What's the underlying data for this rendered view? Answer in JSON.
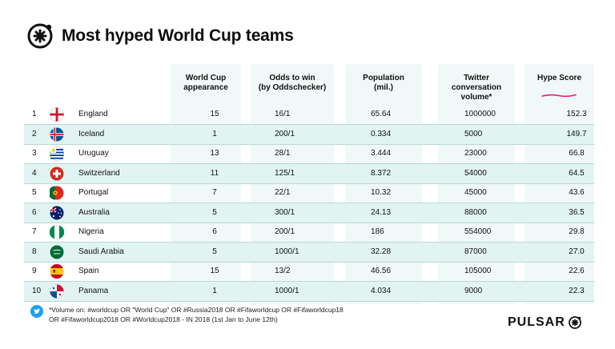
{
  "title": "Most hyped World Cup teams",
  "headers": {
    "world_cup": [
      "World Cup",
      "appearance"
    ],
    "odds": [
      "Odds to win",
      "(by Oddschecker)"
    ],
    "population": [
      "Population",
      "(mil.)"
    ],
    "twitter": [
      "Twitter",
      "conversation",
      "volume*"
    ],
    "hype": [
      "Hype Score"
    ]
  },
  "colors": {
    "shade": "#f0f9f8",
    "row_alt": "#e1f4f2",
    "hype_underline": "#e0207a",
    "twitter_blue": "#1da1f2"
  },
  "rows": [
    {
      "rank": "1",
      "team": "England",
      "flag": "england-flag-icon",
      "world_cup": "15",
      "odds": "16/1",
      "population": "65.64",
      "twitter": "1000000",
      "hype": "152.3"
    },
    {
      "rank": "2",
      "team": "Iceland",
      "flag": "iceland-flag-icon",
      "world_cup": "1",
      "odds": "200/1",
      "population": "0.334",
      "twitter": "5000",
      "hype": "149.7"
    },
    {
      "rank": "3",
      "team": "Uruguay",
      "flag": "uruguay-flag-icon",
      "world_cup": "13",
      "odds": "28/1",
      "population": "3.444",
      "twitter": "23000",
      "hype": "66.8"
    },
    {
      "rank": "4",
      "team": "Switzerland",
      "flag": "switzerland-flag-icon",
      "world_cup": "11",
      "odds": "125/1",
      "population": "8.372",
      "twitter": "54000",
      "hype": "64.5"
    },
    {
      "rank": "5",
      "team": "Portugal",
      "flag": "portugal-flag-icon",
      "world_cup": "7",
      "odds": "22/1",
      "population": "10.32",
      "twitter": "45000",
      "hype": "43.6"
    },
    {
      "rank": "6",
      "team": "Australia",
      "flag": "australia-flag-icon",
      "world_cup": "5",
      "odds": "300/1",
      "population": "24.13",
      "twitter": "88000",
      "hype": "36.5"
    },
    {
      "rank": "7",
      "team": "Nigeria",
      "flag": "nigeria-flag-icon",
      "world_cup": "6",
      "odds": "200/1",
      "population": "186",
      "twitter": "554000",
      "hype": "29.8"
    },
    {
      "rank": "8",
      "team": "Saudi Arabia",
      "flag": "saudi-arabia-flag-icon",
      "world_cup": "5",
      "odds": "1000/1",
      "population": "32.28",
      "twitter": "87000",
      "hype": "27.0"
    },
    {
      "rank": "9",
      "team": "Spain",
      "flag": "spain-flag-icon",
      "world_cup": "15",
      "odds": "13/2",
      "population": "46.56",
      "twitter": "105000",
      "hype": "22.6"
    },
    {
      "rank": "10",
      "team": "Panama",
      "flag": "panama-flag-icon",
      "world_cup": "1",
      "odds": "1000/1",
      "population": "4.034",
      "twitter": "9000",
      "hype": "22.3"
    }
  ],
  "footnote": [
    "*Volume on: #worldcup OR \"World Cup\" OR #Russia2018 OR #Fifaworldcup OR #Fifaworldcup18",
    "OR #Fifaworldcup2018 OR #Worldcup2018 - IN 2018 (1st Jan to June 12th)"
  ],
  "brand": "PULSAR",
  "chart_data": {
    "type": "table",
    "title": "Most hyped World Cup teams",
    "columns": [
      "",
      "",
      "World Cup appearance",
      "Odds to win (by Oddschecker)",
      "Population (mil.)",
      "Twitter conversation volume*",
      "Hype Score"
    ],
    "rows": [
      [
        "1",
        "England",
        15,
        "16/1",
        65.64,
        1000000,
        152.3
      ],
      [
        "2",
        "Iceland",
        1,
        "200/1",
        0.334,
        5000,
        149.7
      ],
      [
        "3",
        "Uruguay",
        13,
        "28/1",
        3.444,
        23000,
        66.8
      ],
      [
        "4",
        "Switzerland",
        11,
        "125/1",
        8.372,
        54000,
        64.5
      ],
      [
        "5",
        "Portugal",
        7,
        "22/1",
        10.32,
        45000,
        43.6
      ],
      [
        "6",
        "Australia",
        5,
        "300/1",
        24.13,
        88000,
        36.5
      ],
      [
        "7",
        "Nigeria",
        6,
        "200/1",
        186,
        554000,
        29.8
      ],
      [
        "8",
        "Saudi Arabia",
        5,
        "1000/1",
        32.28,
        87000,
        27.0
      ],
      [
        "9",
        "Spain",
        15,
        "13/2",
        46.56,
        105000,
        22.6
      ],
      [
        "10",
        "Panama",
        1,
        "1000/1",
        4.034,
        9000,
        22.3
      ]
    ]
  }
}
